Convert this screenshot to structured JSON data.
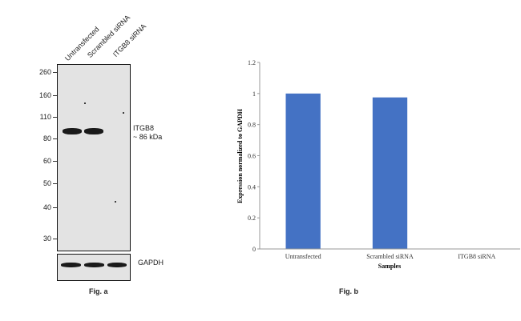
{
  "fig_a": {
    "lanes": [
      "Untransfected",
      "Scrambled siRNA",
      "ITGB8 siRNA"
    ],
    "markers": [
      "260",
      "160",
      "110",
      "80",
      "60",
      "50",
      "40",
      "30"
    ],
    "target_label": "ITGB8",
    "target_size": "~ 86 kDa",
    "loading_label": "GAPDH",
    "caption": "Fig. a"
  },
  "fig_b": {
    "caption": "Fig. b"
  },
  "chart_data": {
    "type": "bar",
    "categories": [
      "Untransfected",
      "Scrambled siRNA",
      "ITGB8 siRNA"
    ],
    "values": [
      1.0,
      0.975,
      0.0
    ],
    "xlabel": "Samples",
    "ylabel": "Expression normalized to GAPDH",
    "ylim": [
      0,
      1.2
    ],
    "yticks": [
      "0",
      "0.2",
      "0.4",
      "0.6",
      "0.8",
      "1",
      "1.2"
    ],
    "bar_color": "#4472c4",
    "grid": false
  }
}
